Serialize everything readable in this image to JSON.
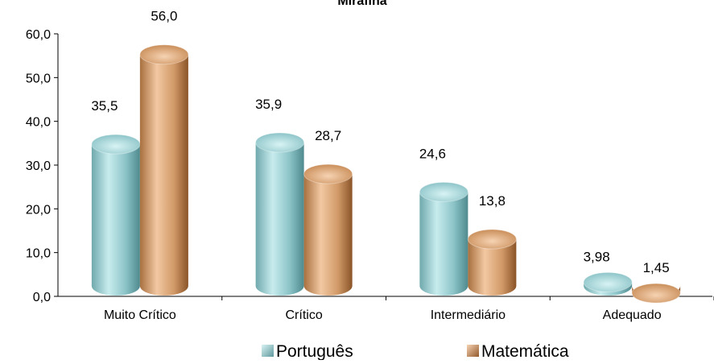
{
  "chart_data": {
    "type": "bar",
    "title": "Mirafina",
    "categories": [
      "Muito Crítico",
      "Crítico",
      "Intermediário",
      "Adequado"
    ],
    "series": [
      {
        "name": "Português",
        "values": [
          35.5,
          35.9,
          24.6,
          3.98
        ],
        "labels": [
          "35,5",
          "35,9",
          "24,6",
          "3,98"
        ],
        "color": "#9fd3d6"
      },
      {
        "name": "Matemática",
        "values": [
          56.0,
          28.7,
          13.8,
          1.45
        ],
        "labels": [
          "56,0",
          "28,7",
          "13,8",
          "1,45"
        ],
        "color": "#d6a172"
      }
    ],
    "ylim": [
      0,
      60
    ],
    "yticks": [
      "0,0",
      "10,0",
      "20,0",
      "30,0",
      "40,0",
      "50,0",
      "60,0"
    ],
    "legend_position": "bottom",
    "grid": false
  }
}
